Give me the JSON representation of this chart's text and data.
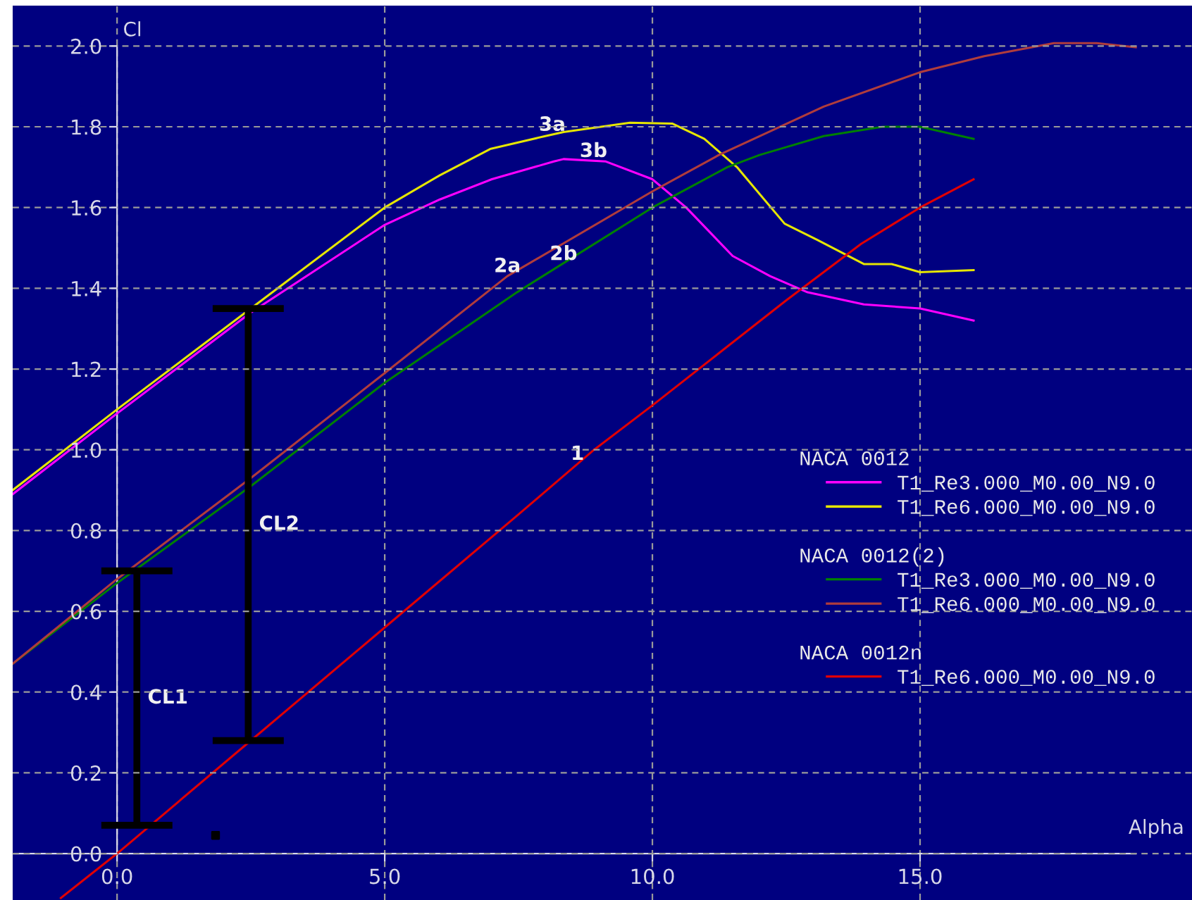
{
  "chart_data": {
    "type": "line",
    "xlabel": "Alpha",
    "ylabel": "Cl",
    "xlim": [
      -1.95,
      20.08
    ],
    "ylim": [
      -0.115,
      2.1
    ],
    "xticks": [
      {
        "value": 0,
        "label": "0.0"
      },
      {
        "value": 5,
        "label": "5.0"
      },
      {
        "value": 10,
        "label": "10.0"
      },
      {
        "value": 15,
        "label": "15.0"
      }
    ],
    "yticks": [
      {
        "value": 0,
        "label": "0.0"
      },
      {
        "value": 0.2,
        "label": "0.2"
      },
      {
        "value": 0.4,
        "label": "0.4"
      },
      {
        "value": 0.6,
        "label": "0.6"
      },
      {
        "value": 0.8,
        "label": "0.8"
      },
      {
        "value": 1.0,
        "label": "1.0"
      },
      {
        "value": 1.2,
        "label": "1.2"
      },
      {
        "value": 1.4,
        "label": "1.4"
      },
      {
        "value": 1.6,
        "label": "1.6"
      },
      {
        "value": 1.8,
        "label": "1.8"
      },
      {
        "value": 2.0,
        "label": "2.0"
      }
    ],
    "grid": true,
    "legend": "right",
    "marker": "none",
    "line_style": "solid",
    "legend_title": [
      "NACA 0012",
      "NACA 0012(2)",
      "NACA 0012n"
    ],
    "series": [
      {
        "name": "T1_Re3.000_M0.00_N9.0",
        "color": "#ff00ff",
        "x": [
          -1.95,
          0,
          2.5,
          5,
          6.03,
          7,
          8.16,
          8.34,
          9.13,
          10,
          10.63,
          11.5,
          12.2,
          12.9,
          13.95,
          15,
          16
        ],
        "values": [
          0.89,
          1.09,
          1.34,
          1.557,
          1.62,
          1.67,
          1.714,
          1.72,
          1.714,
          1.67,
          1.6,
          1.48,
          1.43,
          1.39,
          1.36,
          1.35,
          1.32
        ]
      },
      {
        "name": "T1_Re6.000_M0.00_N9.0",
        "color": "#e6e600",
        "x": [
          -1.95,
          0,
          2.5,
          5,
          6.03,
          6.97,
          8.0,
          8.34,
          9.58,
          10.37,
          10.97,
          11.58,
          12.47,
          13.08,
          13.95,
          14.47,
          15,
          16
        ],
        "values": [
          0.9,
          1.1,
          1.35,
          1.6,
          1.68,
          1.745,
          1.777,
          1.787,
          1.81,
          1.808,
          1.77,
          1.7,
          1.56,
          1.52,
          1.46,
          1.46,
          1.44,
          1.445
        ]
      },
      {
        "name": "T1_Re3.000_M0.00_N9.0",
        "color": "#008000",
        "x": [
          -1.95,
          0,
          2.5,
          5,
          7.47,
          10,
          11.4,
          12.0,
          13.2,
          14.3,
          15,
          16
        ],
        "values": [
          0.47,
          0.67,
          0.91,
          1.166,
          1.39,
          1.6,
          1.7,
          1.73,
          1.777,
          1.8,
          1.8,
          1.77
        ]
      },
      {
        "name": "T1_Re6.000_M0.00_N9.0",
        "color": "#b03c3c",
        "x": [
          -1.95,
          0,
          2.5,
          5,
          7.29,
          10,
          11.24,
          13.2,
          15,
          16.2,
          17.5,
          18.3,
          19.03
        ],
        "values": [
          0.47,
          0.68,
          0.93,
          1.19,
          1.43,
          1.64,
          1.73,
          1.85,
          1.935,
          1.975,
          2.007,
          2.007,
          1.997
        ]
      },
      {
        "name": "T1_Re6.000_M0.00_N9.0",
        "color": "#e00000",
        "x": [
          -1.05,
          0,
          2.5,
          5,
          7.5,
          8.91,
          10,
          12.5,
          13.9,
          15,
          16
        ],
        "values": [
          -0.11,
          0.0,
          0.28,
          0.56,
          0.84,
          1.0,
          1.11,
          1.37,
          1.51,
          1.6,
          1.67
        ]
      },
      {
        "name": "CL1",
        "color": "#000000",
        "x": [
          0.37,
          0.37
        ],
        "values": [
          0.07,
          0.7
        ]
      },
      {
        "name": "CL2",
        "color": "#000000",
        "x": [
          2.45,
          2.45
        ],
        "values": [
          0.28,
          1.35
        ]
      },
      {
        "type": "scatter",
        "color": "#000000",
        "marker": "square",
        "x": [
          1.84
        ],
        "values": [
          0.045
        ]
      }
    ],
    "annotations": [
      {
        "text": "3a",
        "x": 8.13,
        "y": 1.78
      },
      {
        "text": "3b",
        "x": 8.9,
        "y": 1.715
      },
      {
        "text": "2a",
        "x": 7.29,
        "y": 1.43
      },
      {
        "text": "2b",
        "x": 8.34,
        "y": 1.46
      },
      {
        "text": "1",
        "x": 8.6,
        "y": 0.965
      }
    ]
  }
}
